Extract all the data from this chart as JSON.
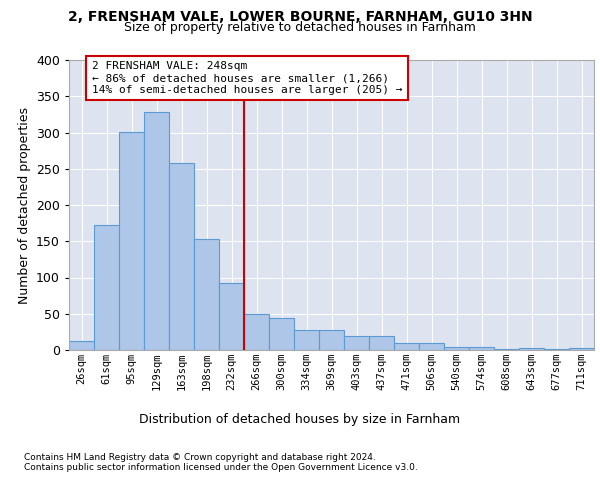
{
  "title1": "2, FRENSHAM VALE, LOWER BOURNE, FARNHAM, GU10 3HN",
  "title2": "Size of property relative to detached houses in Farnham",
  "xlabel": "Distribution of detached houses by size in Farnham",
  "ylabel": "Number of detached properties",
  "footnote1": "Contains HM Land Registry data © Crown copyright and database right 2024.",
  "footnote2": "Contains public sector information licensed under the Open Government Licence v3.0.",
  "bar_labels": [
    "26sqm",
    "61sqm",
    "95sqm",
    "129sqm",
    "163sqm",
    "198sqm",
    "232sqm",
    "266sqm",
    "300sqm",
    "334sqm",
    "369sqm",
    "403sqm",
    "437sqm",
    "471sqm",
    "506sqm",
    "540sqm",
    "574sqm",
    "608sqm",
    "643sqm",
    "677sqm",
    "711sqm"
  ],
  "bar_values": [
    12,
    172,
    301,
    328,
    258,
    153,
    92,
    50,
    44,
    28,
    28,
    20,
    20,
    9,
    9,
    4,
    4,
    1,
    3,
    1,
    3
  ],
  "bar_color": "#aec6e8",
  "bar_edge_color": "#5b9bd5",
  "background_color": "#dde4f0",
  "grid_color": "#ffffff",
  "annotation_line1": "2 FRENSHAM VALE: 248sqm",
  "annotation_line2": "← 86% of detached houses are smaller (1,266)",
  "annotation_line3": "14% of semi-detached houses are larger (205) →",
  "annotation_box_color": "#ffffff",
  "annotation_box_edge": "#cc0000",
  "vline_color": "#cc0000",
  "vline_x": 6.5,
  "ylim": [
    0,
    400
  ],
  "yticks": [
    0,
    50,
    100,
    150,
    200,
    250,
    300,
    350,
    400
  ]
}
